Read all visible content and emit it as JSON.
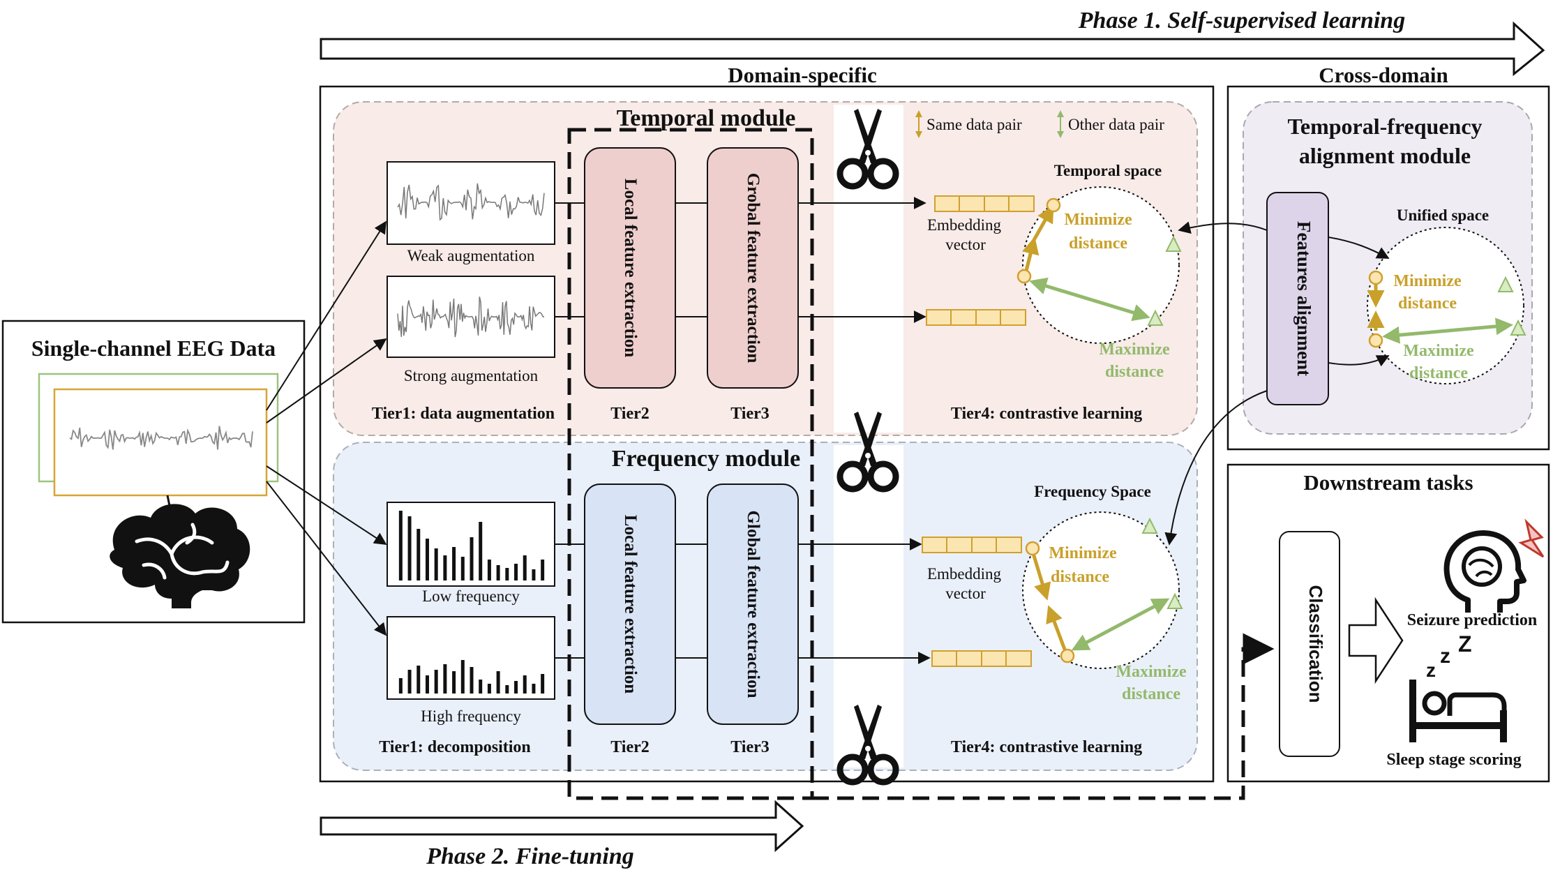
{
  "phases": {
    "phase1": "Phase 1. Self-supervised learning",
    "phase2": "Phase 2. Fine-tuning"
  },
  "sections": {
    "domain_specific": "Domain-specific",
    "cross_domain": "Cross-domain",
    "downstream": "Downstream tasks"
  },
  "input": {
    "title": "Single-channel EEG Data"
  },
  "temporal": {
    "title": "Temporal module",
    "weak": "Weak augmentation",
    "strong": "Strong augmentation",
    "tier1": "Tier1: data augmentation",
    "local": "Local feature extraction",
    "global": "Grobal feature extraction",
    "tier2": "Tier2",
    "tier3": "Tier3",
    "tier4": "Tier4: contrastive learning",
    "embedding": [
      "Embedding",
      "vector"
    ],
    "space": "Temporal space",
    "minimize": [
      "Minimize",
      "distance"
    ],
    "maximize": [
      "Maximize",
      "distance"
    ]
  },
  "frequency": {
    "title": "Frequency module",
    "low": "Low frequency",
    "high": "High frequency",
    "tier1": "Tier1: decomposition",
    "local": "Local feature extraction",
    "global": "Global feature extraction",
    "tier2": "Tier2",
    "tier3": "Tier3",
    "tier4": "Tier4: contrastive learning",
    "embedding": [
      "Embedding",
      "vector"
    ],
    "space": "Frequency Space",
    "minimize": [
      "Minimize",
      "distance"
    ],
    "maximize": [
      "Maximize",
      "distance"
    ]
  },
  "legend": {
    "same": "Same data pair",
    "other": "Other data pair"
  },
  "alignment": {
    "title": [
      "Temporal-frequency",
      "alignment module"
    ],
    "features": "Features alignment",
    "space": "Unified space",
    "minimize": [
      "Minimize",
      "distance"
    ],
    "maximize": [
      "Maximize",
      "distance"
    ]
  },
  "downstream": {
    "classification": "Classification",
    "seizure": "Seizure prediction",
    "sleep": "Sleep stage scoring"
  },
  "colors": {
    "gold": "#c9a02a",
    "green": "#93b96b",
    "temporal_bg": "#f8ebe8",
    "frequency_bg": "#eaf0fa",
    "temporal_block": "#efcfcd",
    "frequency_block": "#d8e4f6",
    "align_block": "#ddd4ea"
  },
  "icons": [
    "scissors-icon",
    "brain-icon",
    "head-seizure-icon",
    "bed-sleep-icon"
  ]
}
